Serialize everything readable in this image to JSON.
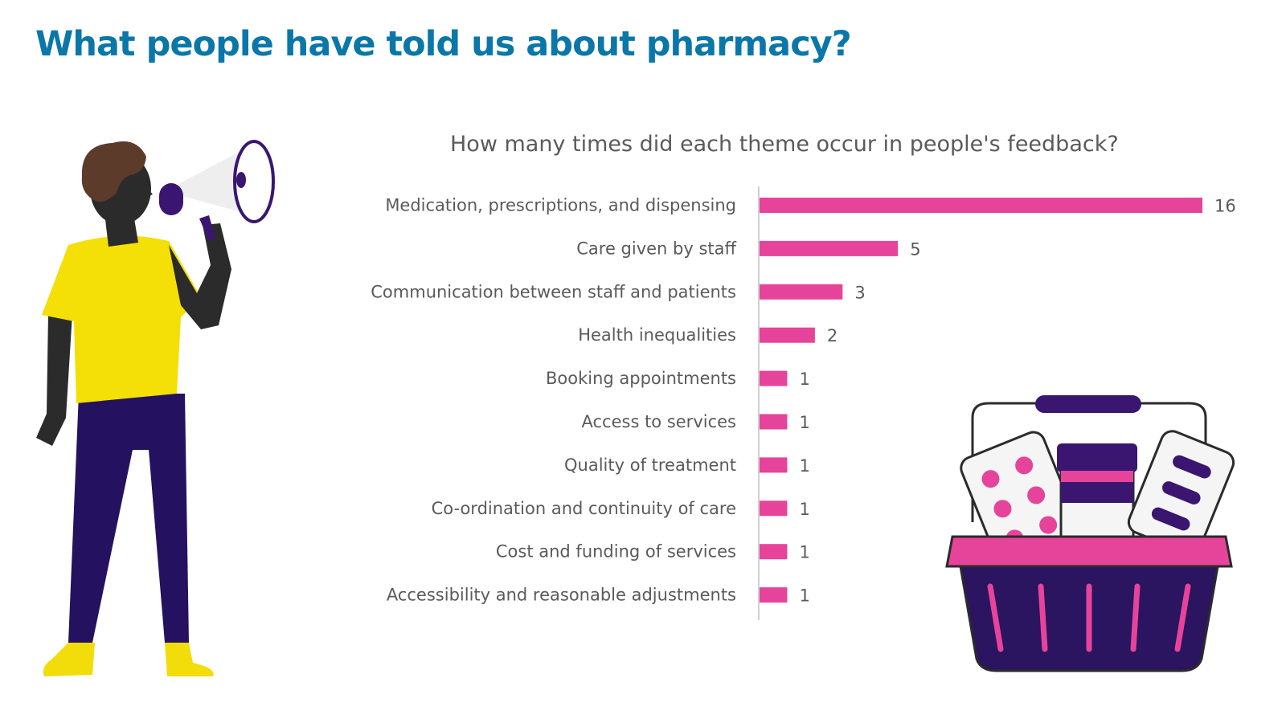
{
  "page": {
    "title": "What people have told us about pharmacy?",
    "title_color": "#0a77a8"
  },
  "illustrations": {
    "person": "person-with-megaphone",
    "basket": "medicine-basket"
  },
  "chart_data": {
    "type": "bar",
    "orientation": "horizontal",
    "title": "How many times did each theme occur in people's feedback?",
    "categories": [
      "Medication, prescriptions, and dispensing",
      "Care given by staff",
      "Communication between staff and patients",
      "Health inequalities",
      "Booking appointments",
      "Access to services",
      "Quality of treatment",
      "Co-ordination and continuity of care",
      "Cost and funding of services",
      "Accessibility and reasonable adjustments"
    ],
    "values": [
      16,
      5,
      3,
      2,
      1,
      1,
      1,
      1,
      1,
      1
    ],
    "xlim": [
      0,
      16
    ],
    "bar_color": "#e6449a",
    "grid": false,
    "data_labels": true
  }
}
